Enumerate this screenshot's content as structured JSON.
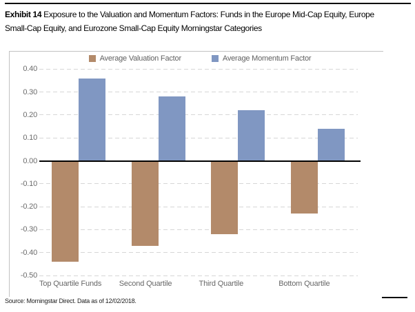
{
  "header": {
    "exhibit_label": "Exhibit 14",
    "title_rest_line1": " Exposure to the Valuation and Momentum Factors: Funds in the Europe Mid-Cap Equity, Europe",
    "title_line2": "Small-Cap Equity, and Eurozone Small-Cap Equity Morningstar Categories"
  },
  "chart_data": {
    "type": "bar",
    "title": "Exposure to the Valuation and Momentum Factors: Funds in the Europe Mid-Cap Equity, Europe Small-Cap Equity, and Eurozone Small-Cap Equity Morningstar Categories",
    "categories": [
      "Top Quartile Funds",
      "Second Quartile",
      "Third Quartile",
      "Bottom Quartile"
    ],
    "series": [
      {
        "name": "Average Valuation Factor",
        "color": "#b38a6a",
        "values": [
          -0.44,
          -0.37,
          -0.32,
          -0.23
        ]
      },
      {
        "name": "Average Momentum Factor",
        "color": "#8097c2",
        "values": [
          0.36,
          0.28,
          0.22,
          0.14
        ]
      }
    ],
    "ylim": [
      -0.5,
      0.4
    ],
    "ytick_step": 0.1,
    "ytick_labels": [
      "0.40",
      "0.30",
      "0.20",
      "0.10",
      "0.00",
      "-0.10",
      "-0.20",
      "-0.30",
      "-0.40",
      "-0.50"
    ],
    "grid": "horizontal-dashed",
    "legend_position": "top-center"
  },
  "footer": {
    "source": "Source: Morningstar Direct. Data as of 12/02/2018."
  }
}
